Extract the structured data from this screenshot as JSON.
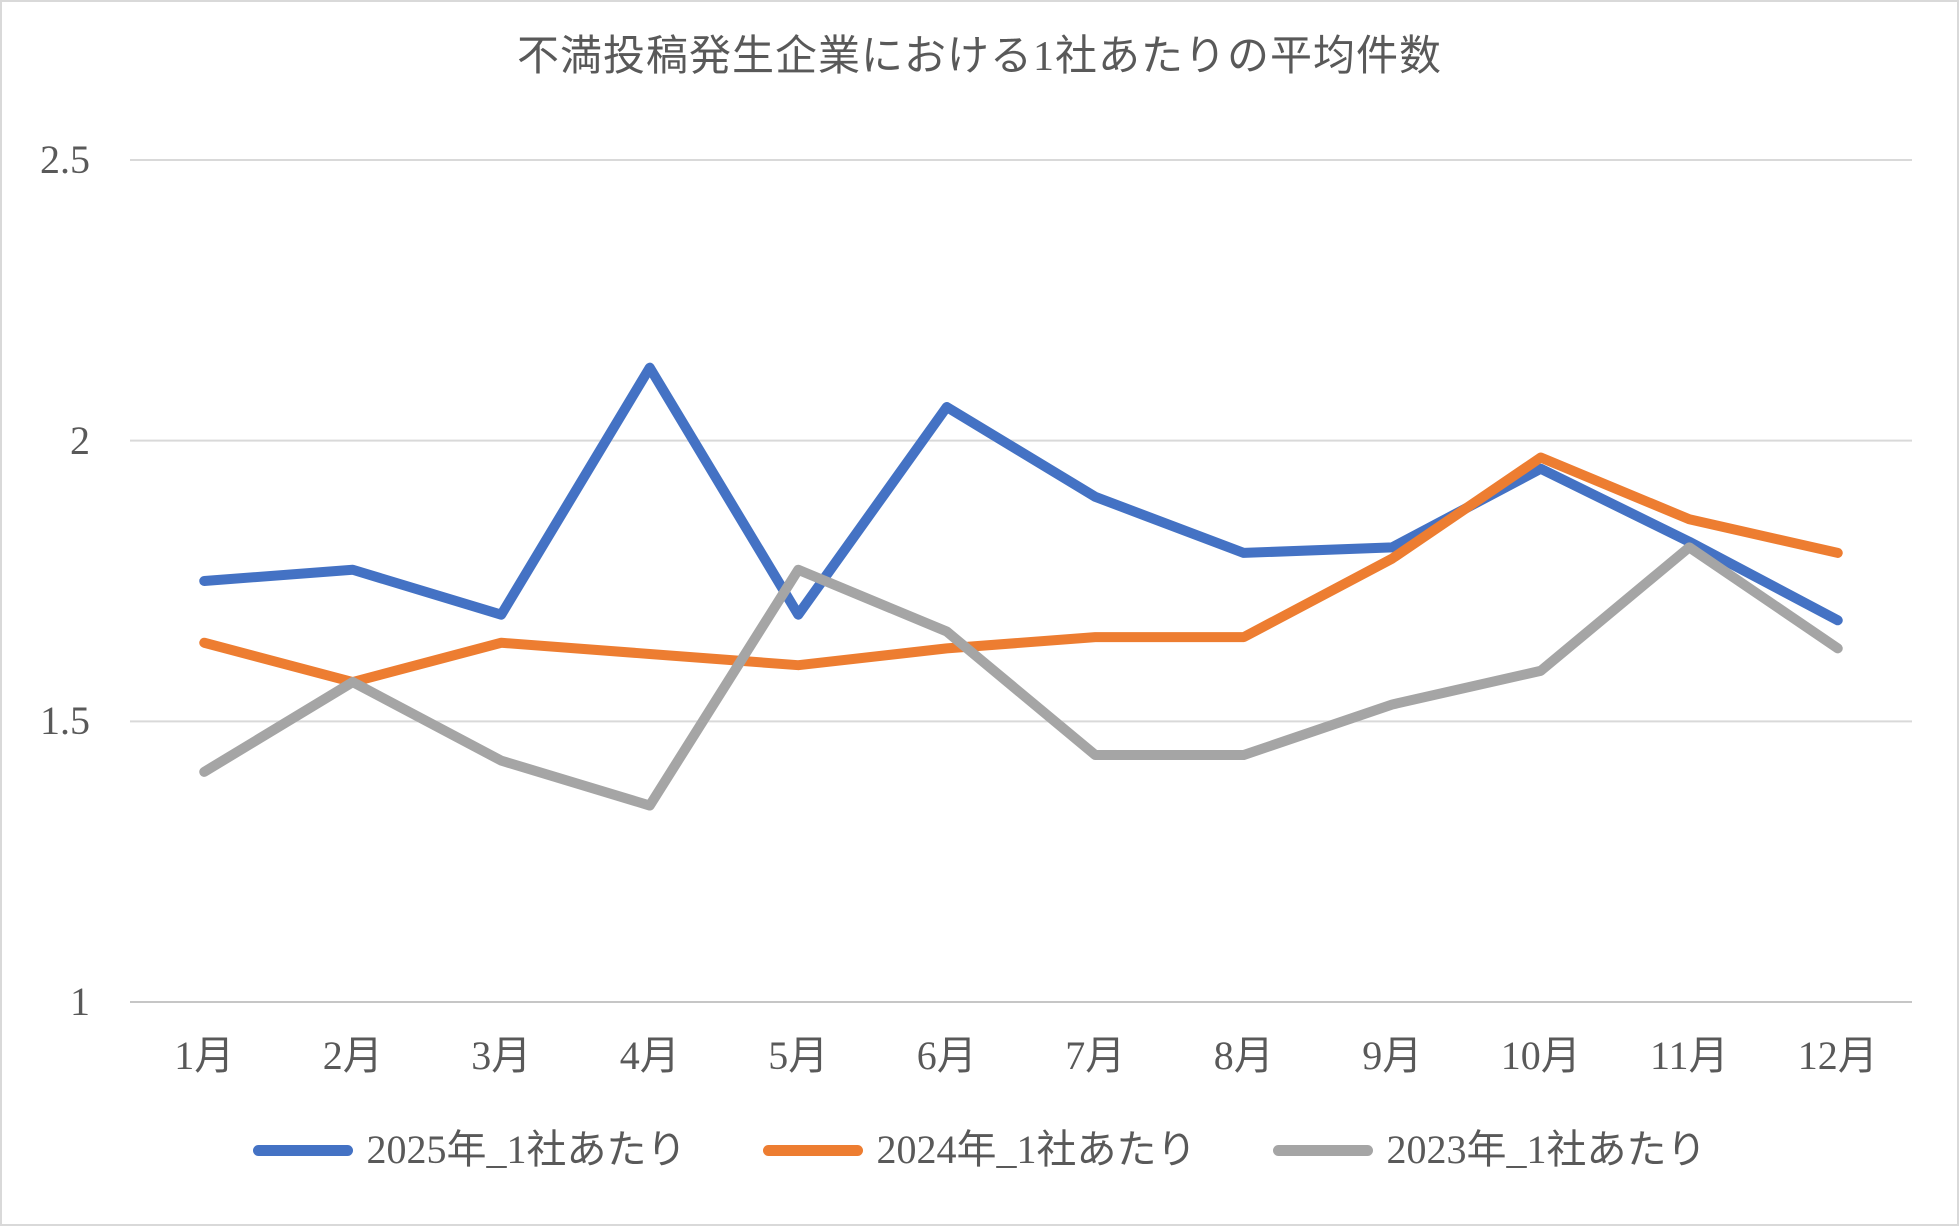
{
  "title": "不満投稿発生企業における1社あたりの平均件数",
  "colors": {
    "text": "#595959",
    "gridline": "#d9d9d9",
    "axis_line": "#c6c6c6",
    "border": "#d9d9d9",
    "background": "#ffffff"
  },
  "chart_data": {
    "type": "line",
    "title": "不満投稿発生企業における1社あたりの平均件数",
    "categories": [
      "1月",
      "2月",
      "3月",
      "4月",
      "5月",
      "6月",
      "7月",
      "8月",
      "9月",
      "10月",
      "11月",
      "12月"
    ],
    "series": [
      {
        "name": "2025年_1社あたり",
        "color": "#4472C4",
        "values": [
          1.75,
          1.77,
          1.69,
          2.13,
          1.69,
          2.06,
          1.9,
          1.8,
          1.81,
          1.95,
          1.82,
          1.68
        ]
      },
      {
        "name": "2024年_1社あたり",
        "color": "#ED7D31",
        "values": [
          1.64,
          1.57,
          1.64,
          1.62,
          1.6,
          1.63,
          1.65,
          1.65,
          1.79,
          1.97,
          1.86,
          1.8
        ]
      },
      {
        "name": "2023年_1社あたり",
        "color": "#A5A5A5",
        "values": [
          1.41,
          1.57,
          1.43,
          1.35,
          1.77,
          1.66,
          1.44,
          1.44,
          1.53,
          1.59,
          1.81,
          1.63
        ]
      }
    ],
    "xlabel": "",
    "ylabel": "",
    "ylim": [
      1,
      2.5
    ],
    "y_ticks": [
      {
        "value": 1,
        "label": "1"
      },
      {
        "value": 1.5,
        "label": "1.5"
      },
      {
        "value": 2,
        "label": "2"
      },
      {
        "value": 2.5,
        "label": "2.5"
      }
    ],
    "grid": true,
    "legend_position": "bottom"
  }
}
